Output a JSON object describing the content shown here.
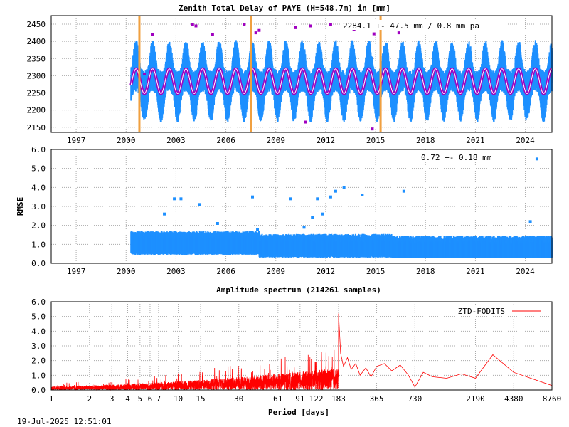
{
  "charts": [
    {
      "type": "scatter",
      "title": "Zenith Total Delay of PAYE (H=548.7m) in [mm]",
      "annotation": "2284.1 +-  47.5 mm /  0.8 mm pa",
      "xlabel": "",
      "ylabel": "",
      "x_ticks": [
        "1997",
        "2000",
        "2003",
        "2006",
        "2009",
        "2012",
        "2015",
        "2018",
        "2021",
        "2024"
      ],
      "y_ticks": [
        "2150",
        "2200",
        "2250",
        "2300",
        "2350",
        "2400",
        "2450"
      ],
      "xlim": [
        1995.5,
        2025.6
      ],
      "ylim": [
        2135,
        2475
      ],
      "grid": true,
      "data_start": 2000.3,
      "mean": 2284.1,
      "seasonal_amplitude": 45,
      "scatter_halfwidth": 75,
      "trend_mm_per_year": 0.8,
      "breaks": [
        2000.8,
        2007.5,
        2015.3
      ],
      "colors": {
        "points": "#1e90ff",
        "model": "#a000c0",
        "model_core": "#ffffff",
        "breaks": "#f0a040",
        "outliers": "#a000c0"
      }
    },
    {
      "type": "scatter",
      "title": "",
      "annotation": "0.72 +-  0.18 mm",
      "xlabel": "",
      "ylabel": "RMSE",
      "x_ticks": [
        "1997",
        "2000",
        "2003",
        "2006",
        "2009",
        "2012",
        "2015",
        "2018",
        "2021",
        "2024"
      ],
      "y_ticks": [
        "0.0",
        "1.0",
        "2.0",
        "3.0",
        "4.0",
        "5.0",
        "6.0"
      ],
      "xlim": [
        1995.5,
        2025.6
      ],
      "ylim": [
        0,
        6
      ],
      "grid": true,
      "data_start": 2000.3,
      "outliers": [
        [
          2002.3,
          2.6
        ],
        [
          2002.9,
          3.4
        ],
        [
          2003.3,
          3.4
        ],
        [
          2004.4,
          3.1
        ],
        [
          2005.5,
          2.1
        ],
        [
          2007.6,
          3.5
        ],
        [
          2007.9,
          1.8
        ],
        [
          2009.9,
          3.4
        ],
        [
          2010.7,
          1.9
        ],
        [
          2011.2,
          2.4
        ],
        [
          2011.5,
          3.4
        ],
        [
          2011.8,
          2.6
        ],
        [
          2012.3,
          3.5
        ],
        [
          2012.6,
          3.8
        ],
        [
          2013.1,
          4.0
        ],
        [
          2014.2,
          3.6
        ],
        [
          2016.7,
          3.8
        ],
        [
          2024.3,
          2.2
        ],
        [
          2024.7,
          5.5
        ]
      ],
      "colors": {
        "points": "#1e90ff"
      }
    },
    {
      "type": "line",
      "title": "Amplitude spectrum (214261 samples)",
      "xlabel": "Period [days]",
      "ylabel": "",
      "legend": "ZTD-FODITS",
      "legend_position": "top-right",
      "x_ticks": [
        "1",
        "2",
        "3",
        "4",
        "5",
        "6",
        "7",
        "10",
        "15",
        "30",
        "61",
        "91",
        "122",
        "183",
        "365",
        "730",
        "2190",
        "4380",
        "8760"
      ],
      "y_ticks": [
        "0.0",
        "1.0",
        "2.0",
        "3.0",
        "4.0",
        "5.0",
        "6.0"
      ],
      "xlim": [
        1,
        8760
      ],
      "ylim": [
        0,
        6
      ],
      "xscale": "log",
      "grid": true,
      "peaks": [
        [
          183,
          5.2
        ],
        [
          365,
          1.6
        ],
        [
          2190,
          0.8
        ],
        [
          3000,
          2.4
        ],
        [
          4380,
          1.2
        ],
        [
          8760,
          0.3
        ]
      ],
      "colors": {
        "line": "#ff0000"
      }
    }
  ],
  "timestamp": "19-Jul-2025 12:51:01"
}
